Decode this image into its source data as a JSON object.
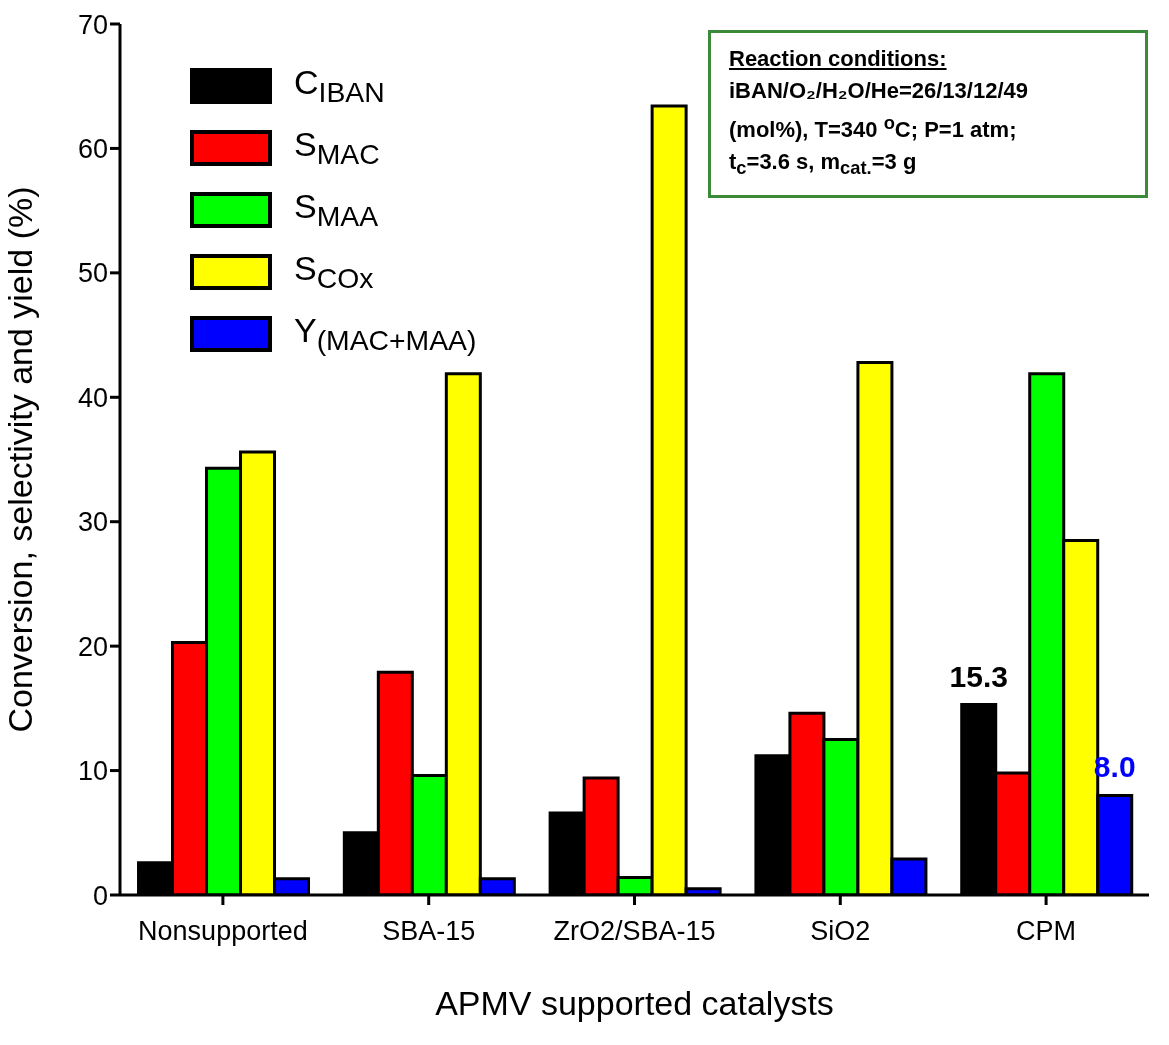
{
  "chart_data": {
    "type": "bar",
    "xlabel": "APMV supported catalysts",
    "ylabel": "Conversion, selectivity and yield (%)",
    "categories": [
      "Nonsupported",
      "SBA-15",
      "ZrO2/SBA-15",
      "SiO2",
      "CPM"
    ],
    "series": [
      {
        "name": "C$_{IBAN}$",
        "color": "#000000",
        "values": [
          2.6,
          5.0,
          6.6,
          11.2,
          15.3
        ],
        "value_labels": [
          null,
          null,
          null,
          null,
          "15.3"
        ]
      },
      {
        "name": "S$_{MAC}$",
        "color": "#ff0000",
        "values": [
          20.3,
          17.9,
          9.4,
          14.6,
          9.8
        ]
      },
      {
        "name": "S$_{MAA}$",
        "color": "#00ff00",
        "values": [
          34.3,
          9.6,
          1.4,
          12.5,
          41.9
        ]
      },
      {
        "name": "S$_{COx}$",
        "color": "#ffff00",
        "values": [
          35.6,
          41.9,
          63.4,
          42.8,
          28.5
        ]
      },
      {
        "name": "Y$_{(MAC+MAA)}$",
        "color": "#0000ff",
        "values": [
          1.3,
          1.3,
          0.5,
          2.9,
          8.0
        ],
        "value_labels": [
          null,
          null,
          null,
          null,
          "8.0"
        ]
      }
    ],
    "ylim": [
      0,
      70
    ],
    "yticks": [
      0,
      10,
      20,
      30,
      40,
      50,
      60,
      70
    ],
    "grid": false,
    "legend": "top left",
    "annotations": [
      "Reaction conditions:",
      "iBAN/O₂/H₂O/He=26/13/12/49",
      "(mol%), T=340 $^{o}$C; P=1 atm;",
      "t$_{c}$=3.6 s, m$_{cat.}$=3 g"
    ]
  }
}
